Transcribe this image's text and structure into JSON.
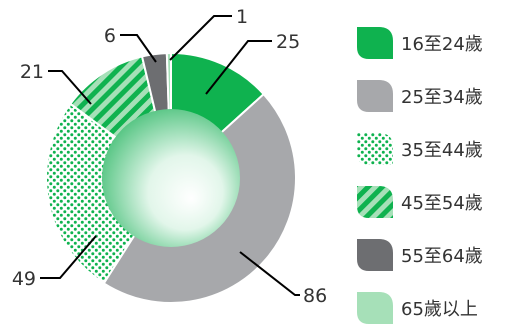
{
  "chart_data": {
    "type": "pie",
    "variant": "donut",
    "title": "",
    "categories": [
      "16至24歲",
      "25至34歲",
      "35至44歲",
      "45至54歲",
      "55至64歲",
      "65歲以上"
    ],
    "values": [
      25,
      86,
      49,
      21,
      6,
      1
    ],
    "data_labels": [
      "25",
      "86",
      "49",
      "21",
      "6",
      "1"
    ],
    "legend_placement": "right",
    "slice_styles": [
      {
        "color": "#0fb24f",
        "pattern": "solid"
      },
      {
        "color": "#a7a8ab",
        "pattern": "solid"
      },
      {
        "color": "#0fb24f",
        "pattern": "dots"
      },
      {
        "color": "#0fb24f",
        "pattern": "diagonal-stripes"
      },
      {
        "color": "#6d6e71",
        "pattern": "solid"
      },
      {
        "color": "#a6e0b8",
        "pattern": "solid"
      }
    ]
  }
}
